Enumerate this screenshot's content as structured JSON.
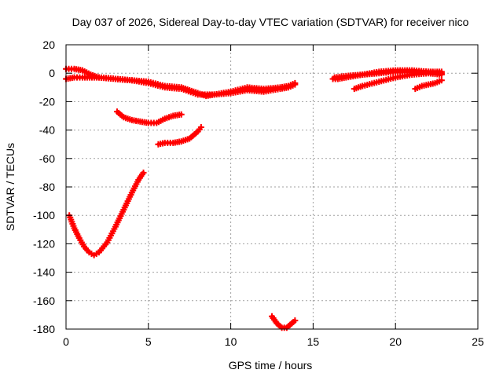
{
  "chart_data": {
    "type": "scatter",
    "title": "Day 037 of 2026, Sidereal Day-to-day VTEC variation (SDTVAR) for receiver nico",
    "xlabel": "GPS time / hours",
    "ylabel": "SDTVAR / TECUs",
    "xlim": [
      0,
      25
    ],
    "ylim": [
      -180,
      20
    ],
    "xticks": [
      0,
      5,
      10,
      15,
      20,
      25
    ],
    "yticks": [
      20,
      0,
      -20,
      -40,
      -60,
      -80,
      -100,
      -120,
      -140,
      -160,
      -180
    ],
    "grid": true,
    "legend": "none",
    "marker": "plus",
    "color": "#ff0000",
    "series": [
      {
        "points": [
          [
            0,
            3
          ],
          [
            0.5,
            3
          ],
          [
            1,
            2
          ],
          [
            1.5,
            -1
          ],
          [
            2,
            -3
          ],
          [
            3,
            -4
          ],
          [
            4,
            -5
          ],
          [
            5,
            -7
          ],
          [
            6,
            -10
          ],
          [
            7,
            -11
          ],
          [
            8,
            -15
          ],
          [
            9,
            -15
          ],
          [
            10,
            -13
          ],
          [
            11,
            -10
          ],
          [
            12,
            -11
          ],
          [
            13,
            -10
          ],
          [
            13.5,
            -9
          ],
          [
            13.9,
            -7
          ]
        ]
      },
      {
        "points": [
          [
            0,
            -4
          ],
          [
            0.5,
            -3
          ],
          [
            1,
            -3
          ],
          [
            2,
            -3
          ],
          [
            3,
            -4
          ],
          [
            4,
            -5
          ],
          [
            5,
            -6
          ],
          [
            6,
            -9
          ],
          [
            7,
            -10
          ],
          [
            7.5,
            -12
          ],
          [
            8,
            -14
          ],
          [
            8.5,
            -16
          ],
          [
            9,
            -15
          ],
          [
            10,
            -14
          ],
          [
            11,
            -12
          ],
          [
            12,
            -13
          ],
          [
            13,
            -11
          ],
          [
            13.5,
            -10
          ],
          [
            13.9,
            -8
          ]
        ]
      },
      {
        "points": [
          [
            3.1,
            -27
          ],
          [
            3.5,
            -31
          ],
          [
            4,
            -33
          ],
          [
            4.5,
            -34
          ],
          [
            5,
            -35
          ],
          [
            5.5,
            -35
          ],
          [
            6,
            -32
          ],
          [
            6.5,
            -30
          ],
          [
            7,
            -29
          ]
        ]
      },
      {
        "points": [
          [
            5.6,
            -50
          ],
          [
            6,
            -49
          ],
          [
            6.5,
            -49
          ],
          [
            7,
            -48
          ],
          [
            7.5,
            -46
          ],
          [
            8,
            -41
          ],
          [
            8.2,
            -38
          ]
        ]
      },
      {
        "points": [
          [
            0.2,
            -100
          ],
          [
            0.5,
            -109
          ],
          [
            0.8,
            -116
          ],
          [
            1.1,
            -122
          ],
          [
            1.4,
            -126
          ],
          [
            1.7,
            -128
          ],
          [
            2.0,
            -126
          ],
          [
            2.5,
            -119
          ],
          [
            3.0,
            -108
          ],
          [
            3.5,
            -96
          ],
          [
            4.0,
            -84
          ],
          [
            4.4,
            -75
          ],
          [
            4.7,
            -70
          ]
        ]
      },
      {
        "points": [
          [
            12.5,
            -171
          ],
          [
            12.8,
            -176
          ],
          [
            13.1,
            -179
          ],
          [
            13.4,
            -179
          ],
          [
            13.7,
            -176
          ],
          [
            13.9,
            -174
          ]
        ]
      },
      {
        "points": [
          [
            16.2,
            -4
          ],
          [
            16.5,
            -4
          ],
          [
            17,
            -3
          ],
          [
            18,
            -1
          ],
          [
            19,
            0
          ],
          [
            20,
            1
          ],
          [
            21,
            1
          ],
          [
            22,
            1
          ],
          [
            22.8,
            1
          ]
        ]
      },
      {
        "points": [
          [
            16.3,
            -3
          ],
          [
            17,
            -2
          ],
          [
            18,
            -1
          ],
          [
            19,
            1
          ],
          [
            20,
            2
          ],
          [
            21,
            2
          ],
          [
            22,
            1
          ],
          [
            22.8,
            0
          ]
        ]
      },
      {
        "points": [
          [
            17.5,
            -11
          ],
          [
            18,
            -9
          ],
          [
            19,
            -6
          ],
          [
            20,
            -3
          ],
          [
            21,
            -1
          ],
          [
            22,
            0
          ],
          [
            22.8,
            -1
          ]
        ]
      },
      {
        "points": [
          [
            21.2,
            -11
          ],
          [
            21.6,
            -9
          ],
          [
            22,
            -8
          ],
          [
            22.4,
            -7
          ],
          [
            22.8,
            -5
          ]
        ]
      }
    ]
  }
}
